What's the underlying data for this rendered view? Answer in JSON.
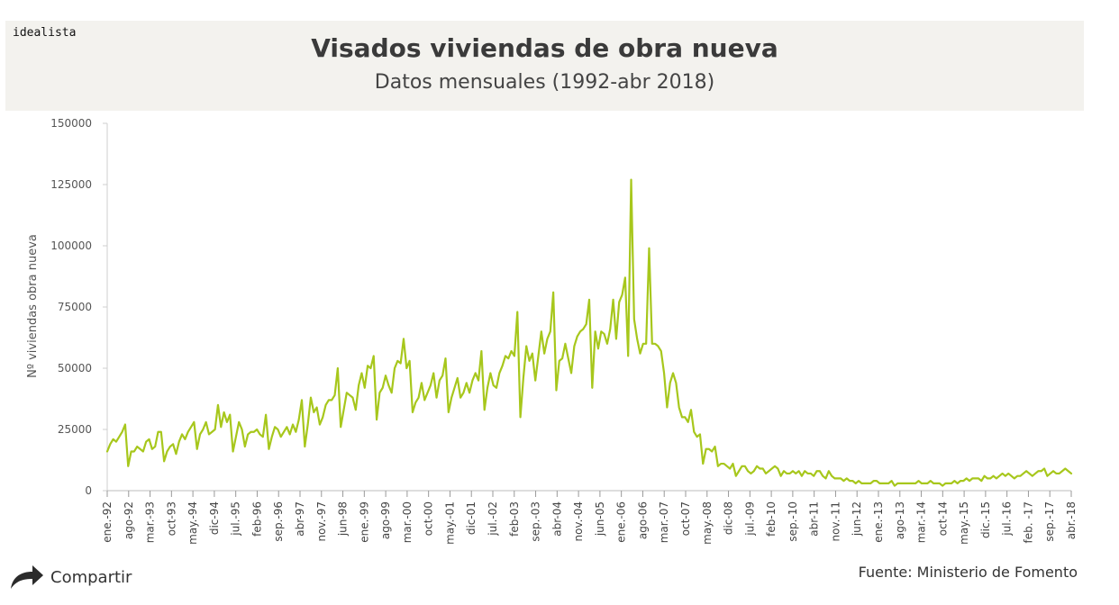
{
  "brand": "idealista",
  "share_label": "Compartir",
  "source": "Fuente: Ministerio de Fomento",
  "colors": {
    "line": "#a7c71c",
    "header_bg": "#f3f2ee"
  },
  "chart_data": {
    "type": "line",
    "title": "Visados viviendas de obra nueva",
    "subtitle": "Datos mensuales (1992-abr 2018)",
    "xlabel": "",
    "ylabel": "Nº viviendas obra nueva",
    "ylim": [
      0,
      150000
    ],
    "yticks": [
      "0",
      "25000",
      "50000",
      "75000",
      "100000",
      "125000",
      "150000"
    ],
    "xticks": [
      "ene.-92",
      "ago-92",
      "mar.-93",
      "oct-93",
      "may.-94",
      "dic-94",
      "jul.-95",
      "feb-96",
      "sep.-96",
      "abr-97",
      "nov.-97",
      "jun-98",
      "ene.-99",
      "ago-99",
      "mar.-00",
      "oct-00",
      "may.-01",
      "dic-01",
      "jul.-02",
      "feb-03",
      "sep.-03",
      "abr-04",
      "nov.-04",
      "jun-05",
      "ene.-06",
      "ago-06",
      "mar.-07",
      "oct-07",
      "may.-08",
      "dic-08",
      "jul.-09",
      "feb-10",
      "sep.-10",
      "abr-11",
      "nov.-11",
      "jun-12",
      "ene.-13",
      "ago-13",
      "mar.-14",
      "oct-14",
      "may.-15",
      "dic.-15",
      "jul.-16",
      "feb. -17",
      "sep.-17",
      "abr.-18"
    ],
    "series": [
      {
        "name": "Visados",
        "values": [
          16000,
          19000,
          21000,
          20000,
          22000,
          24000,
          27000,
          10000,
          16000,
          16000,
          18000,
          17000,
          16000,
          20000,
          21000,
          17000,
          18000,
          24000,
          24000,
          12000,
          16000,
          18000,
          19000,
          15000,
          20000,
          23000,
          21000,
          24000,
          26000,
          28000,
          17000,
          23000,
          25000,
          28000,
          23000,
          24000,
          25000,
          35000,
          26000,
          32000,
          28000,
          31000,
          16000,
          22000,
          28000,
          25000,
          18000,
          23000,
          24000,
          24000,
          25000,
          23000,
          22000,
          31000,
          17000,
          22000,
          26000,
          25000,
          22000,
          24000,
          26000,
          23000,
          27000,
          24000,
          29000,
          37000,
          18000,
          27000,
          38000,
          32000,
          34000,
          27000,
          30000,
          35000,
          37000,
          37000,
          39000,
          50000,
          26000,
          33000,
          40000,
          39000,
          38000,
          33000,
          43000,
          48000,
          42000,
          51000,
          50000,
          55000,
          29000,
          40000,
          42000,
          47000,
          43000,
          40000,
          50000,
          53000,
          52000,
          62000,
          50000,
          53000,
          32000,
          36000,
          38000,
          44000,
          37000,
          40000,
          43000,
          48000,
          38000,
          45000,
          47000,
          54000,
          32000,
          38000,
          42000,
          46000,
          38000,
          40000,
          44000,
          40000,
          45000,
          48000,
          45000,
          57000,
          33000,
          42000,
          48000,
          43000,
          42000,
          48000,
          51000,
          55000,
          54000,
          57000,
          55000,
          73000,
          30000,
          46000,
          59000,
          53000,
          56000,
          45000,
          55000,
          65000,
          56000,
          62000,
          65000,
          81000,
          41000,
          53000,
          54000,
          60000,
          54000,
          48000,
          59000,
          63000,
          65000,
          66000,
          68000,
          78000,
          42000,
          65000,
          58000,
          65000,
          64000,
          60000,
          66000,
          78000,
          62000,
          77000,
          80000,
          87000,
          55000,
          127000,
          70000,
          62000,
          56000,
          60000,
          60000,
          99000,
          60000,
          60000,
          59000,
          57000,
          48000,
          34000,
          44000,
          48000,
          44000,
          34000,
          30000,
          30000,
          28000,
          33000,
          24000,
          22000,
          23000,
          11000,
          17000,
          17000,
          16000,
          18000,
          10000,
          11000,
          11000,
          10000,
          9000,
          11000,
          6000,
          8000,
          10000,
          10000,
          8000,
          7000,
          8000,
          10000,
          9000,
          9000,
          7000,
          8000,
          9000,
          10000,
          9000,
          6000,
          8000,
          7000,
          7000,
          8000,
          7000,
          8000,
          6000,
          8000,
          7000,
          7000,
          6000,
          8000,
          8000,
          6000,
          5000,
          8000,
          6000,
          5000,
          5000,
          5000,
          4000,
          5000,
          4000,
          4000,
          3000,
          4000,
          3000,
          3000,
          3000,
          3000,
          4000,
          4000,
          3000,
          3000,
          3000,
          3000,
          4000,
          2000,
          3000,
          3000,
          3000,
          3000,
          3000,
          3000,
          3000,
          4000,
          3000,
          3000,
          3000,
          4000,
          3000,
          3000,
          3000,
          2000,
          3000,
          3000,
          3000,
          4000,
          3000,
          4000,
          4000,
          5000,
          4000,
          5000,
          5000,
          5000,
          4000,
          6000,
          5000,
          5000,
          6000,
          5000,
          6000,
          7000,
          6000,
          7000,
          6000,
          5000,
          6000,
          6000,
          7000,
          8000,
          7000,
          6000,
          7000,
          8000,
          8000,
          9000,
          6000,
          7000,
          8000,
          7000,
          7000,
          8000,
          9000,
          8000,
          7000
        ]
      }
    ]
  }
}
